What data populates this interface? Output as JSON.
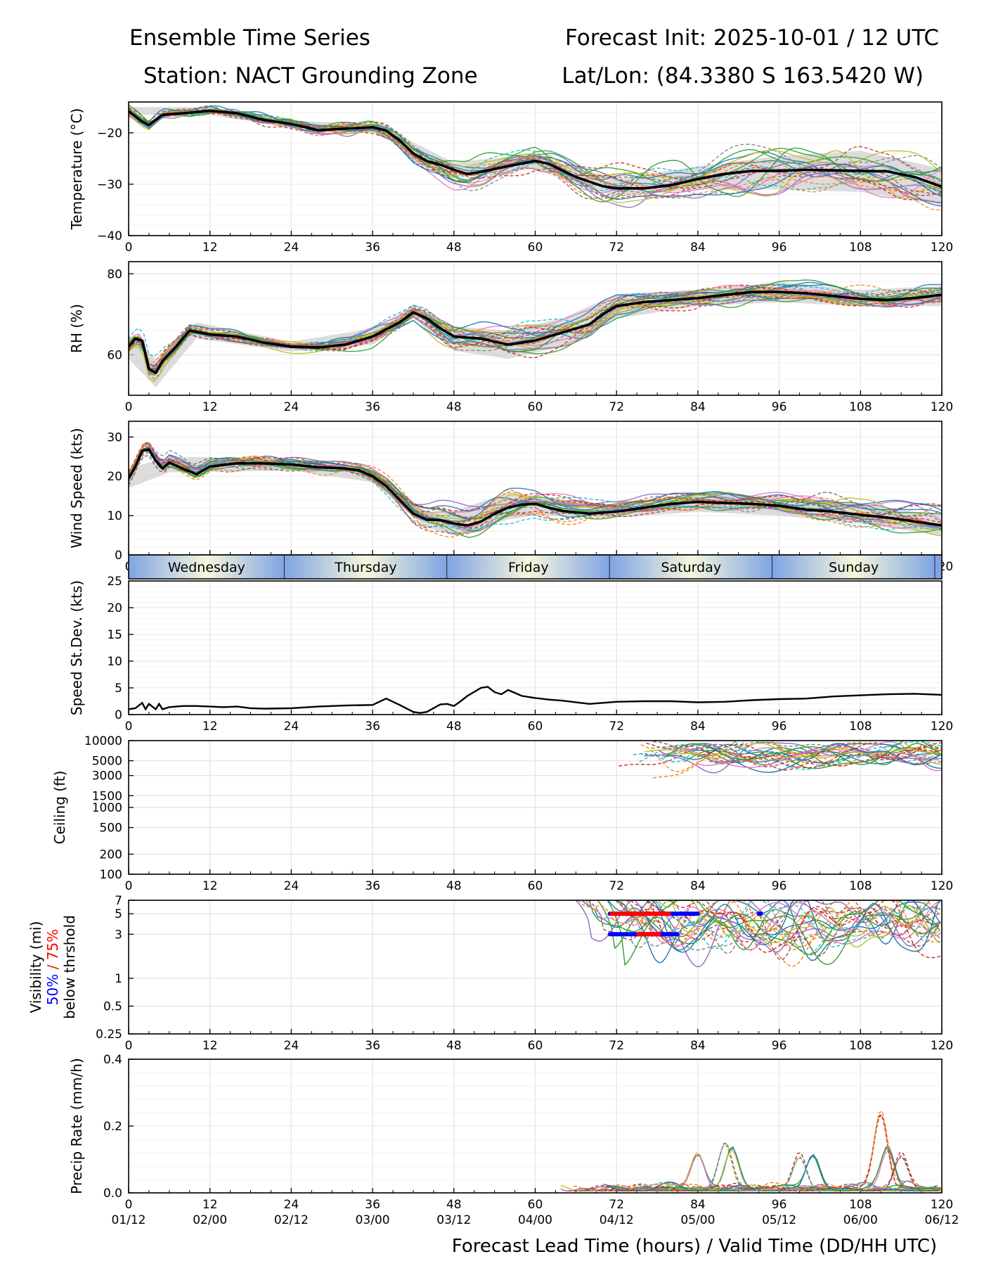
{
  "header": {
    "title_left_1": "Ensemble Time Series",
    "title_left_2": "Station: NACT Grounding Zone",
    "title_right_1": "Forecast Init: 2025-10-01 / 12 UTC",
    "title_right_2": "Lat/Lon: (84.3380 S 163.5420 W)"
  },
  "xaxis": {
    "label": "Forecast Lead Time (hours) / Valid Time (DD/HH UTC)",
    "range": [
      0,
      120
    ],
    "ticks": [
      0,
      12,
      24,
      36,
      48,
      60,
      72,
      84,
      96,
      108,
      120
    ],
    "tick_labels": [
      "0",
      "12",
      "24",
      "36",
      "48",
      "60",
      "72",
      "84",
      "96",
      "108",
      "120"
    ],
    "valid_labels": [
      "01/12",
      "02/00",
      "02/12",
      "03/00",
      "03/12",
      "04/00",
      "04/12",
      "05/00",
      "05/12",
      "06/00",
      "06/12"
    ]
  },
  "days": {
    "labels": [
      "Wednesday",
      "Thursday",
      "Friday",
      "Saturday",
      "Sunday"
    ],
    "starts": [
      0,
      23,
      47,
      71,
      95
    ],
    "ends": [
      23,
      47,
      71,
      95,
      119
    ]
  },
  "colors": {
    "mean": "#000000",
    "spread": "#d0d0d0",
    "grid": "#e6e6e6",
    "pct50": "#0000ff",
    "pct75": "#ff0000",
    "members": [
      "#1f77b4",
      "#ff7f0e",
      "#2ca02c",
      "#d62728",
      "#9467bd",
      "#8c564b",
      "#e377c2",
      "#7f7f7f",
      "#bcbd22",
      "#17becf"
    ]
  },
  "ensemble_members": 24,
  "chart_data": [
    {
      "type": "line",
      "panel": "temperature",
      "ylabel": "Temperature (°C)",
      "ylim": [
        -40,
        -14
      ],
      "yticks": [
        -40,
        -30,
        -20
      ],
      "ytick_labels": [
        "−40",
        "−30",
        "−20"
      ],
      "series": [
        {
          "name": "ensemble mean",
          "x": [
            0,
            2,
            3,
            5,
            8,
            12,
            16,
            20,
            24,
            28,
            32,
            36,
            38,
            40,
            42,
            44,
            46,
            48,
            50,
            52,
            56,
            60,
            62,
            64,
            66,
            68,
            70,
            72,
            76,
            80,
            84,
            88,
            92,
            96,
            100,
            104,
            108,
            112,
            116,
            120
          ],
          "values": [
            -15.8,
            -17.8,
            -18.5,
            -16.5,
            -16.2,
            -15.7,
            -16.2,
            -17.5,
            -18.3,
            -19.5,
            -19.2,
            -18.9,
            -19.6,
            -21.5,
            -24.0,
            -25.5,
            -26.2,
            -27.2,
            -28.0,
            -27.6,
            -26.5,
            -25.5,
            -26.0,
            -27.3,
            -28.6,
            -29.5,
            -30.4,
            -30.8,
            -30.8,
            -30.2,
            -29.0,
            -28.0,
            -27.4,
            -27.4,
            -27.2,
            -27.3,
            -27.4,
            -27.5,
            -28.6,
            -30.5
          ]
        }
      ],
      "spread": {
        "x": [
          0,
          12,
          24,
          36,
          40,
          48,
          60,
          64,
          72,
          84,
          96,
          108,
          120
        ],
        "low": [
          -16.5,
          -16.5,
          -19.0,
          -19.6,
          -22.5,
          -28.5,
          -27.0,
          -28.5,
          -32.5,
          -31.0,
          -31.0,
          -31.5,
          -34.0
        ],
        "high": [
          -15.0,
          -15.0,
          -17.6,
          -18.3,
          -20.5,
          -25.8,
          -24.0,
          -26.0,
          -29.0,
          -26.5,
          -24.5,
          -23.5,
          -27.0
        ]
      },
      "member_jitter": 1.0,
      "member_spread": [
        0.5,
        0.5,
        0.6,
        0.8,
        1.2,
        2.0,
        1.8,
        2.0,
        2.6,
        3.0,
        3.5,
        3.8,
        4.2
      ]
    },
    {
      "type": "line",
      "panel": "rh",
      "ylabel": "RH (%)",
      "ylim": [
        50,
        83
      ],
      "yticks": [
        60,
        80
      ],
      "ytick_labels": [
        "60",
        "80"
      ],
      "series": [
        {
          "name": "ensemble mean",
          "x": [
            0,
            1,
            2,
            3,
            4,
            5,
            7,
            9,
            12,
            16,
            20,
            24,
            28,
            32,
            36,
            40,
            42,
            44,
            46,
            48,
            52,
            56,
            60,
            64,
            68,
            70,
            72,
            76,
            80,
            84,
            88,
            92,
            96,
            100,
            104,
            108,
            112,
            116,
            120
          ],
          "values": [
            62.0,
            64.0,
            63.5,
            56.5,
            55.5,
            58.5,
            62.0,
            66.0,
            65.0,
            64.5,
            63.0,
            62.0,
            61.8,
            62.5,
            64.5,
            68.0,
            70.5,
            69.0,
            66.5,
            64.5,
            64.0,
            62.5,
            63.5,
            65.5,
            67.5,
            70.0,
            72.0,
            73.0,
            73.5,
            74.0,
            74.8,
            75.5,
            75.5,
            75.2,
            74.5,
            73.8,
            73.5,
            74.0,
            74.8
          ]
        }
      ],
      "spread": {
        "x": [
          0,
          4,
          10,
          24,
          36,
          42,
          48,
          56,
          64,
          72,
          84,
          96,
          108,
          120
        ],
        "low": [
          59,
          52,
          64,
          60.8,
          62.5,
          69,
          61,
          59,
          62,
          69,
          72,
          73,
          72,
          72
        ],
        "high": [
          65,
          59,
          68,
          63.2,
          66.5,
          72,
          67,
          66,
          69,
          75,
          76,
          78,
          76,
          77
        ]
      },
      "member_jitter": 1.0,
      "member_spread": [
        1.5,
        3.0,
        1.2,
        1.0,
        1.5,
        1.5,
        3.5,
        3.5,
        3.5,
        2.5,
        2.0,
        2.0,
        2.0,
        2.0
      ]
    },
    {
      "type": "line",
      "panel": "wind_speed",
      "ylabel": "Wind Speed (kts)",
      "ylim": [
        0,
        34
      ],
      "yticks": [
        0,
        10,
        20,
        30
      ],
      "ytick_labels": [
        "0",
        "10",
        "20",
        "30"
      ],
      "series": [
        {
          "name": "ensemble mean",
          "x": [
            0,
            1,
            2,
            3,
            4,
            5,
            6,
            8,
            10,
            12,
            16,
            20,
            24,
            28,
            32,
            34,
            36,
            38,
            40,
            42,
            44,
            46,
            48,
            50,
            52,
            54,
            56,
            58,
            60,
            62,
            64,
            68,
            72,
            76,
            80,
            84,
            88,
            92,
            96,
            100,
            104,
            108,
            112,
            116,
            120
          ],
          "values": [
            19.5,
            22.5,
            26.5,
            26.8,
            24.0,
            22.0,
            23.5,
            22.0,
            20.5,
            22.5,
            23.3,
            23.3,
            23.0,
            22.3,
            22.0,
            21.5,
            20.0,
            17.5,
            14.0,
            10.5,
            9.0,
            8.8,
            8.0,
            7.5,
            8.5,
            10.5,
            12.0,
            12.8,
            13.0,
            12.0,
            11.2,
            10.5,
            11.0,
            12.0,
            13.0,
            13.5,
            13.2,
            13.0,
            12.5,
            11.5,
            11.0,
            10.2,
            9.5,
            8.5,
            7.5
          ]
        }
      ],
      "spread": {
        "x": [
          0,
          6,
          24,
          36,
          44,
          48,
          56,
          60,
          72,
          84,
          96,
          108,
          120
        ],
        "low": [
          17,
          21,
          21.5,
          18.5,
          7,
          5,
          9,
          10,
          9.5,
          11,
          10,
          8,
          5
        ],
        "high": [
          22,
          25,
          24.5,
          21.5,
          11,
          11,
          16,
          15,
          12.5,
          15.5,
          15,
          13,
          10
        ]
      },
      "member_jitter": 1.0,
      "member_spread": [
        1.5,
        1.5,
        1.2,
        1.5,
        2.5,
        3.0,
        4.0,
        3.0,
        2.0,
        2.2,
        2.5,
        3.0,
        3.5
      ]
    },
    {
      "type": "line",
      "panel": "speed_stdev",
      "ylabel": "Speed St.Dev. (kts)",
      "ylim": [
        0,
        25
      ],
      "yticks": [
        0,
        5,
        10,
        15,
        20,
        25
      ],
      "ytick_labels": [
        "0",
        "5",
        "10",
        "15",
        "20",
        "25"
      ],
      "series": [
        {
          "name": "speed standard deviation",
          "x": [
            0,
            1,
            2,
            2.5,
            3,
            4,
            4.5,
            5,
            6,
            8,
            10,
            12,
            14,
            16,
            18,
            20,
            24,
            28,
            32,
            36,
            38,
            40,
            42,
            43,
            44,
            46,
            47,
            48,
            49,
            50,
            52,
            53,
            54,
            55,
            56,
            58,
            60,
            62,
            64,
            68,
            72,
            76,
            80,
            84,
            88,
            92,
            96,
            100,
            104,
            108,
            112,
            116,
            120
          ],
          "values": [
            1.0,
            1.2,
            2.2,
            1.0,
            2.0,
            1.0,
            2.0,
            1.0,
            1.4,
            1.6,
            1.6,
            1.5,
            1.4,
            1.5,
            1.2,
            1.1,
            1.2,
            1.5,
            1.7,
            1.8,
            3.0,
            1.8,
            0.5,
            0.3,
            0.5,
            1.9,
            2.0,
            1.6,
            2.5,
            3.5,
            5.0,
            5.2,
            4.2,
            3.8,
            4.6,
            3.5,
            3.1,
            2.8,
            2.6,
            2.0,
            2.4,
            2.5,
            2.5,
            2.3,
            2.4,
            2.7,
            2.9,
            3.0,
            3.4,
            3.6,
            3.8,
            3.9,
            3.7
          ]
        }
      ]
    },
    {
      "type": "line",
      "panel": "ceiling",
      "ylabel": "Ceiling (ft)",
      "scale": "log",
      "ylim": [
        100,
        10000
      ],
      "yticks": [
        100,
        200,
        500,
        1000,
        1500,
        3000,
        5000,
        10000
      ],
      "ytick_labels": [
        "100",
        "200",
        "500",
        "1000",
        "1500",
        "3000",
        "5000",
        "10000"
      ],
      "member_start": 72,
      "member_range": [
        4500,
        10000
      ]
    },
    {
      "type": "line",
      "panel": "visibility",
      "ylabel": "Visibility (mi)",
      "ylabel_2a": "50%",
      "ylabel_2b": " / 75%",
      "ylabel_3": "below thrshold",
      "scale": "log",
      "ylim": [
        0.25,
        7
      ],
      "yticks": [
        0.25,
        0.5,
        1,
        3,
        5,
        7
      ],
      "ytick_labels": [
        "0.25",
        "0.5",
        "1",
        "3",
        "5",
        "7"
      ],
      "member_start": 64,
      "member_range": [
        0.85,
        7
      ],
      "thresholds": [
        {
          "threshold": 5,
          "pct50": [
            [
              71,
              84
            ],
            [
              93,
              93.3
            ]
          ],
          "pct75": [
            [
              71,
              80
            ]
          ]
        },
        {
          "threshold": 3,
          "pct50": [
            [
              71,
              81
            ]
          ],
          "pct75": [
            [
              75,
              78.5
            ]
          ]
        }
      ]
    },
    {
      "type": "line",
      "panel": "precip",
      "ylabel": "Precip Rate (mm/h)",
      "ylim": [
        0,
        0.4
      ],
      "yticks": [
        0.0,
        0.2,
        0.4
      ],
      "ytick_labels": [
        "0.0",
        "0.2",
        "0.4"
      ],
      "member_start": 63,
      "member_peaks": [
        {
          "at": 84,
          "value": 0.1
        },
        {
          "at": 88,
          "value": 0.14
        },
        {
          "at": 89,
          "value": 0.12
        },
        {
          "at": 99,
          "value": 0.1
        },
        {
          "at": 101,
          "value": 0.1
        },
        {
          "at": 111,
          "value": 0.23
        },
        {
          "at": 112,
          "value": 0.12
        },
        {
          "at": 114,
          "value": 0.1
        }
      ]
    }
  ]
}
